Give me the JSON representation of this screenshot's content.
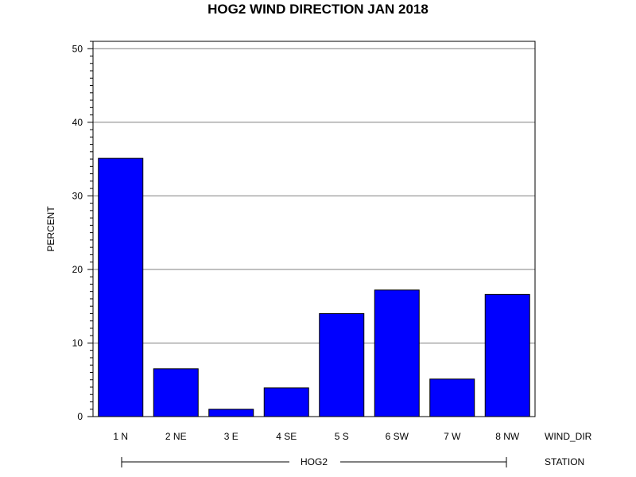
{
  "chart_data": {
    "type": "bar",
    "title": "HOG2 WIND DIRECTION JAN 2018",
    "ylabel": "PERCENT",
    "xlabel": "WIND_DIR",
    "group_axis_label": "STATION",
    "group_label": "HOG2",
    "categories": [
      "1 N",
      "2 NE",
      "3 E",
      "4 SE",
      "5 S",
      "6 SW",
      "7 W",
      "8 NW"
    ],
    "values": [
      35.1,
      6.5,
      1.0,
      3.9,
      14.0,
      17.2,
      5.1,
      16.6
    ],
    "ylim": [
      0,
      51
    ],
    "yticks": [
      0,
      10,
      20,
      30,
      40,
      50
    ],
    "grid": true,
    "bar_color": "#0000ff",
    "gridline_color": "#808080"
  }
}
